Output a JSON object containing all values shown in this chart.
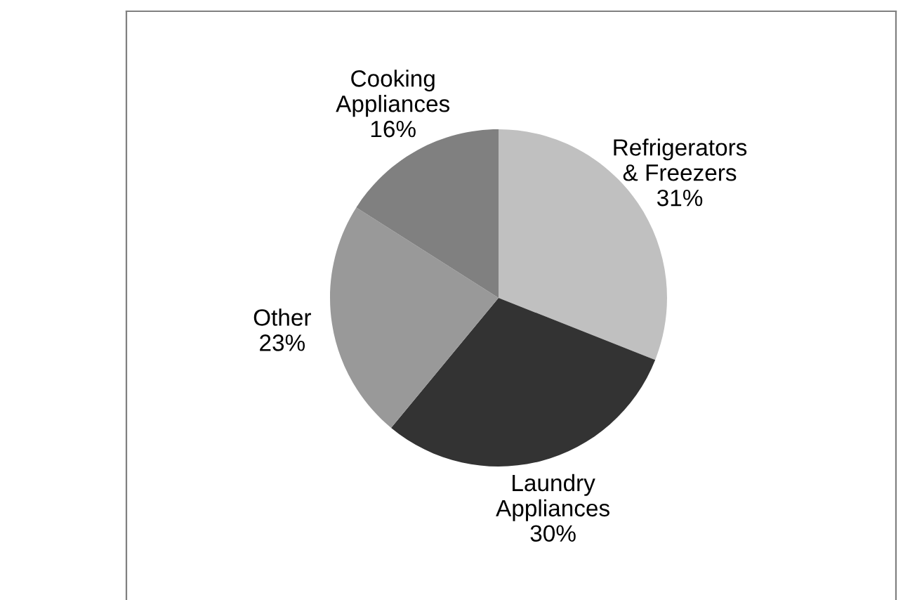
{
  "chart_data": {
    "type": "pie",
    "categories": [
      "Refrigerators\n& Freezers",
      "Laundry\nAppliances",
      "Other",
      "Cooking\nAppliances"
    ],
    "values": [
      31,
      30,
      23,
      16
    ],
    "value_labels": [
      "31%",
      "30%",
      "23%",
      "16%"
    ],
    "colors": [
      "#c0c0c0",
      "#333333",
      "#999999",
      "#808080"
    ],
    "legend": false
  }
}
